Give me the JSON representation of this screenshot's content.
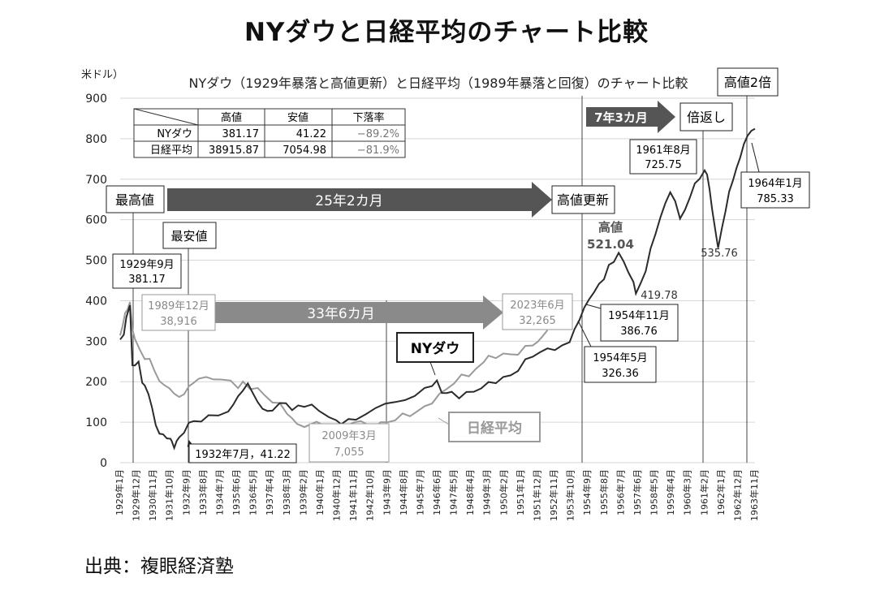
{
  "page": {
    "main_title": "NYダウと日経平均のチャート比較",
    "source": "出典：複眼経済塾"
  },
  "chart_data": {
    "type": "line",
    "title": "NYダウ（1929年暴落と高値更新）と日経平均（1989年暴落と回復）のチャート比較",
    "y_unit_label": "米ドル）",
    "ylim": [
      0,
      900
    ],
    "yticks": [
      0,
      100,
      200,
      300,
      400,
      500,
      600,
      700,
      800,
      900
    ],
    "grid": true,
    "x_tick_labels": [
      "1929年1月",
      "1929年12月",
      "1930年11月",
      "1931年10月",
      "1932年9月",
      "1933年8月",
      "1934年7月",
      "1935年6月",
      "1936年5月",
      "1937年4月",
      "1938年3月",
      "1939年2月",
      "1940年1月",
      "1940年12月",
      "1941年11月",
      "1942年10月",
      "1943年9月",
      "1944年8月",
      "1945年7月",
      "1946年6月",
      "1947年5月",
      "1948年4月",
      "1949年3月",
      "1950年2月",
      "1951年1月",
      "1951年12月",
      "1952年11月",
      "1953年10月",
      "1954年9月",
      "1955年8月",
      "1956年7月",
      "1957年6月",
      "1958年5月",
      "1959年4月",
      "1960年3月",
      "1961年2月",
      "1962年1月",
      "1962年12月",
      "1963年11月"
    ],
    "series": [
      {
        "name": "NYダウ",
        "color": "#2b2b2b",
        "points": [
          [
            0,
            300
          ],
          [
            3,
            325
          ],
          [
            5,
            355
          ],
          [
            8,
            381
          ],
          [
            10,
            250
          ],
          [
            12,
            235
          ],
          [
            15,
            245
          ],
          [
            18,
            205
          ],
          [
            20,
            185
          ],
          [
            23,
            165
          ],
          [
            26,
            135
          ],
          [
            29,
            95
          ],
          [
            32,
            80
          ],
          [
            35,
            65
          ],
          [
            38,
            58
          ],
          [
            41,
            53
          ],
          [
            42,
            45
          ],
          [
            44,
            41
          ],
          [
            46,
            55
          ],
          [
            48,
            60
          ],
          [
            52,
            75
          ],
          [
            56,
            90
          ],
          [
            60,
            100
          ],
          [
            66,
            110
          ],
          [
            72,
            118
          ],
          [
            80,
            125
          ],
          [
            88,
            135
          ],
          [
            92,
            145
          ],
          [
            96,
            165
          ],
          [
            100,
            178
          ],
          [
            104,
            188
          ],
          [
            108,
            170
          ],
          [
            112,
            140
          ],
          [
            116,
            132
          ],
          [
            120,
            125
          ],
          [
            124,
            130
          ],
          [
            130,
            145
          ],
          [
            135,
            150
          ],
          [
            140,
            130
          ],
          [
            145,
            135
          ],
          [
            150,
            145
          ],
          [
            156,
            140
          ],
          [
            162,
            132
          ],
          [
            170,
            115
          ],
          [
            176,
            108
          ],
          [
            180,
            100
          ],
          [
            186,
            105
          ],
          [
            192,
            112
          ],
          [
            200,
            118
          ],
          [
            208,
            128
          ],
          [
            216,
            140
          ],
          [
            224,
            150
          ],
          [
            232,
            160
          ],
          [
            240,
            170
          ],
          [
            248,
            185
          ],
          [
            254,
            198
          ],
          [
            258,
            205
          ],
          [
            262,
            180
          ],
          [
            266,
            170
          ],
          [
            270,
            175
          ],
          [
            276,
            168
          ],
          [
            282,
            172
          ],
          [
            288,
            178
          ],
          [
            294,
            182
          ],
          [
            300,
            190
          ],
          [
            306,
            200
          ],
          [
            312,
            210
          ],
          [
            318,
            218
          ],
          [
            324,
            235
          ],
          [
            330,
            250
          ],
          [
            336,
            262
          ],
          [
            342,
            270
          ],
          [
            348,
            275
          ],
          [
            354,
            285
          ],
          [
            360,
            290
          ],
          [
            366,
            300
          ],
          [
            370,
            322
          ],
          [
            374,
            350
          ],
          [
            378,
            375
          ],
          [
            382,
            400
          ],
          [
            386,
            420
          ],
          [
            390,
            440
          ],
          [
            394,
            460
          ],
          [
            398,
            490
          ],
          [
            402,
            505
          ],
          [
            406,
            521
          ],
          [
            410,
            500
          ],
          [
            414,
            470
          ],
          [
            418,
            440
          ],
          [
            420,
            420
          ],
          [
            424,
            450
          ],
          [
            428,
            480
          ],
          [
            432,
            530
          ],
          [
            436,
            570
          ],
          [
            440,
            600
          ],
          [
            444,
            640
          ],
          [
            448,
            660
          ],
          [
            452,
            640
          ],
          [
            456,
            600
          ],
          [
            460,
            620
          ],
          [
            464,
            660
          ],
          [
            468,
            690
          ],
          [
            472,
            710
          ],
          [
            476,
            726
          ],
          [
            478,
            710
          ],
          [
            480,
            680
          ],
          [
            482,
            620
          ],
          [
            485,
            566
          ],
          [
            487,
            536
          ],
          [
            490,
            580
          ],
          [
            493,
            620
          ],
          [
            496,
            660
          ],
          [
            499,
            700
          ],
          [
            502,
            730
          ],
          [
            505,
            760
          ],
          [
            508,
            785
          ],
          [
            511,
            800
          ],
          [
            514,
            820
          ],
          [
            517,
            825
          ]
        ]
      },
      {
        "name": "日経平均",
        "color": "#9a9a9a",
        "points": [
          [
            0,
            310
          ],
          [
            2,
            340
          ],
          [
            4,
            370
          ],
          [
            6,
            380
          ],
          [
            8,
            389
          ],
          [
            10,
            340
          ],
          [
            12,
            300
          ],
          [
            16,
            275
          ],
          [
            20,
            250
          ],
          [
            24,
            260
          ],
          [
            28,
            225
          ],
          [
            32,
            210
          ],
          [
            36,
            195
          ],
          [
            40,
            190
          ],
          [
            44,
            175
          ],
          [
            48,
            160
          ],
          [
            52,
            170
          ],
          [
            56,
            180
          ],
          [
            60,
            195
          ],
          [
            64,
            200
          ],
          [
            70,
            210
          ],
          [
            76,
            205
          ],
          [
            82,
            200
          ],
          [
            90,
            195
          ],
          [
            96,
            185
          ],
          [
            100,
            200
          ],
          [
            106,
            185
          ],
          [
            112,
            175
          ],
          [
            118,
            165
          ],
          [
            124,
            150
          ],
          [
            130,
            145
          ],
          [
            136,
            130
          ],
          [
            140,
            110
          ],
          [
            144,
            100
          ],
          [
            150,
            95
          ],
          [
            160,
            92
          ],
          [
            170,
            88
          ],
          [
            180,
            85
          ],
          [
            186,
            90
          ],
          [
            190,
            95
          ],
          [
            196,
            98
          ],
          [
            200,
            95
          ],
          [
            206,
            92
          ],
          [
            212,
            98
          ],
          [
            218,
            100
          ],
          [
            224,
            105
          ],
          [
            230,
            112
          ],
          [
            236,
            118
          ],
          [
            242,
            128
          ],
          [
            248,
            140
          ],
          [
            254,
            155
          ],
          [
            260,
            165
          ],
          [
            266,
            180
          ],
          [
            272,
            195
          ],
          [
            278,
            210
          ],
          [
            284,
            220
          ],
          [
            290,
            235
          ],
          [
            296,
            248
          ],
          [
            300,
            255
          ],
          [
            306,
            262
          ],
          [
            312,
            268
          ],
          [
            318,
            270
          ],
          [
            324,
            275
          ],
          [
            330,
            283
          ],
          [
            336,
            290
          ],
          [
            340,
            300
          ],
          [
            344,
            310
          ],
          [
            348,
            320
          ]
        ]
      }
    ],
    "info_table": {
      "headers": [
        "",
        "高値",
        "安値",
        "下落率"
      ],
      "rows": [
        [
          "NYダウ",
          "381.17",
          "41.22",
          "−89.2%"
        ],
        [
          "日経平均",
          "38915.87",
          "7054.98",
          "−81.9%"
        ]
      ]
    },
    "annotations": {
      "peak_label": "最高値",
      "bottom_label": "最安値",
      "new_high_label": "高値更新",
      "double_label": "倍返し",
      "high2x_label": "高値2倍",
      "high_label": "高値",
      "arrow_25": "25年2カ月",
      "arrow_33": "33年6カ月",
      "arrow_7": "7年3カ月",
      "dow_series_tag": "NYダウ",
      "nikkei_series_tag": "日経平均",
      "dow_1929_date": "1929年9月",
      "dow_1929_val": "381.17",
      "nk_1989_date": "1989年12月",
      "nk_1989_val": "38,916",
      "dow_1932": "1932年7月，41.22",
      "nk_2009_date": "2009年3月",
      "nk_2009_val": "7,055",
      "nk_2023_date": "2023年6月",
      "nk_2023_val": "32,265",
      "dow_1954_11_date": "1954年11月",
      "dow_1954_11_val": "386.76",
      "dow_1954_5_date": "1954年5月",
      "dow_1954_5_val": "326.36",
      "dow_521": "521.04",
      "dow_419": "419.78",
      "dow_1961_date": "1961年8月",
      "dow_1961_val": "725.75",
      "dow_1964_date": "1964年1月",
      "dow_1964_val": "785.33",
      "dow_535": "535.76"
    },
    "colors": {
      "arrow_dark": "#555555",
      "arrow_light": "#8a8a8a",
      "grid": "#d6d6d6",
      "nikkei_text": "#9a9a9a"
    }
  }
}
